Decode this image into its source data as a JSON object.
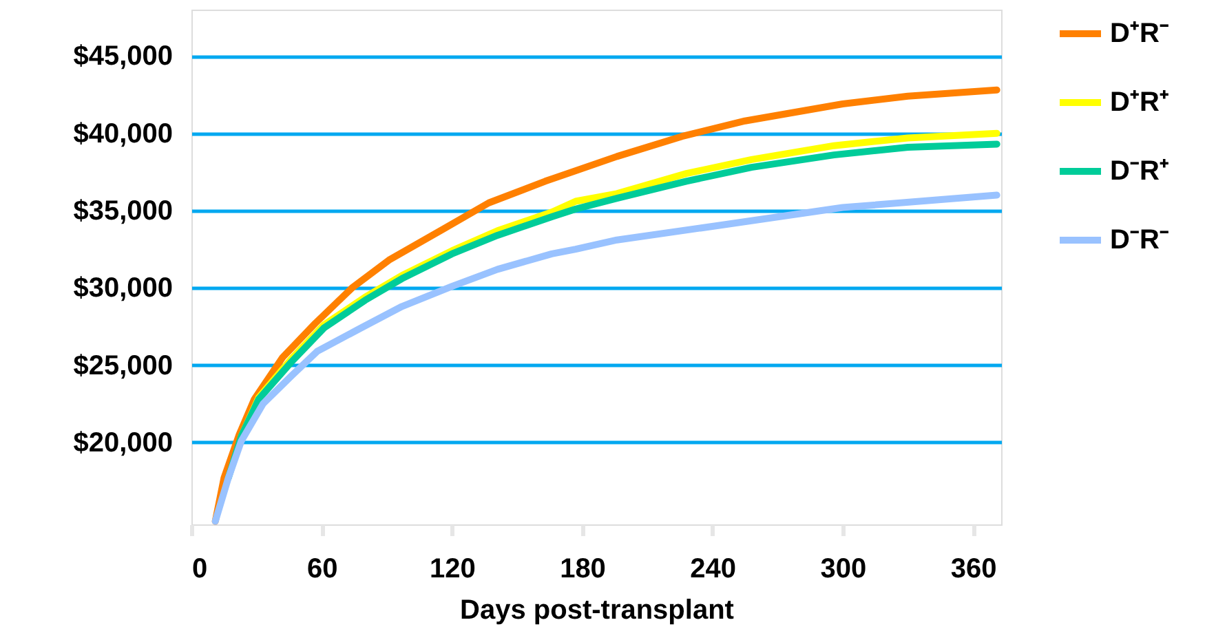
{
  "chart_data": {
    "type": "line",
    "xlabel": "Days post-transplant",
    "xlim": [
      0,
      373
    ],
    "xticks": [
      0,
      60,
      120,
      180,
      240,
      300,
      360
    ],
    "ylim": [
      14700,
      48000
    ],
    "yticks": [
      {
        "value": 20000,
        "label": "$20,000"
      },
      {
        "value": 25000,
        "label": "$25,000"
      },
      {
        "value": 30000,
        "label": "$30,000"
      },
      {
        "value": 35000,
        "label": "$35,000"
      },
      {
        "value": 40000,
        "label": "$40,000"
      },
      {
        "value": 45000,
        "label": "$45,000"
      }
    ],
    "grid": "y",
    "legend": "right",
    "marker": "none",
    "line_style": "solid",
    "series": [
      {
        "name": "D⁺R⁻",
        "color": "#ff8000",
        "x": [
          11,
          15,
          22,
          29,
          42,
          57,
          74,
          91,
          116,
          137,
          163,
          196,
          226,
          255,
          300,
          330,
          371
        ],
        "values": [
          14900,
          17700,
          20500,
          22800,
          25500,
          27700,
          30000,
          31800,
          33800,
          35500,
          36900,
          38500,
          39800,
          40800,
          41900,
          42400,
          42800
        ]
      },
      {
        "name": "D⁺R⁺",
        "color": "#ffff00",
        "x": [
          23,
          31,
          46,
          61,
          80,
          97,
          120,
          141,
          166,
          177,
          196,
          228,
          258,
          296,
          330,
          371
        ],
        "values": [
          20400,
          22900,
          25400,
          27600,
          29400,
          30800,
          32400,
          33700,
          34900,
          35600,
          36100,
          37400,
          38300,
          39200,
          39700,
          40000
        ]
      },
      {
        "name": "D⁻R⁺",
        "color": "#00cc99",
        "x": [
          17,
          23,
          31,
          46,
          61,
          80,
          97,
          120,
          141,
          166,
          177,
          196,
          228,
          258,
          296,
          330,
          371
        ],
        "values": [
          17700,
          20400,
          22800,
          25200,
          27400,
          29200,
          30600,
          32200,
          33400,
          34600,
          35100,
          35800,
          36900,
          37800,
          38600,
          39100,
          39300
        ]
      },
      {
        "name": "D⁻R⁻",
        "color": "#99c2ff",
        "x": [
          11,
          17,
          23,
          33,
          46,
          58,
          78,
          97,
          120,
          141,
          166,
          177,
          196,
          241,
          300,
          371
        ],
        "values": [
          14900,
          17700,
          20100,
          22500,
          24300,
          25900,
          27400,
          28800,
          30100,
          31200,
          32200,
          32500,
          33100,
          34000,
          35200,
          36000
        ]
      }
    ]
  }
}
